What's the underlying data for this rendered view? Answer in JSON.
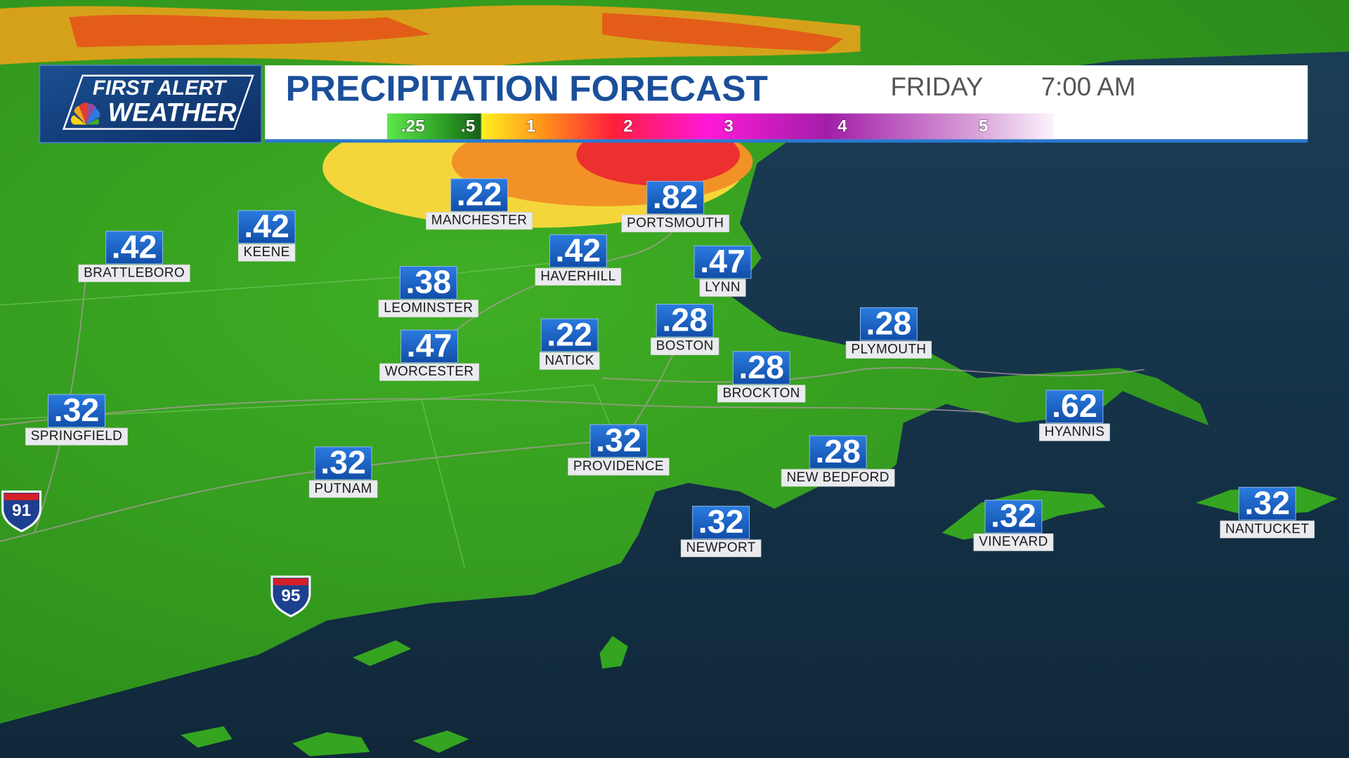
{
  "brand": {
    "line1": "FIRST ALERT",
    "line2": "WEATHER"
  },
  "header": {
    "title": "PRECIPITATION FORECAST",
    "day": "FRIDAY",
    "time": "7:00 AM"
  },
  "legend": {
    "labels": [
      ".25",
      ".5",
      "1",
      "2",
      "3",
      "4",
      "5"
    ]
  },
  "highways": [
    "91",
    "95"
  ],
  "cities": [
    {
      "value": ".22",
      "name": "MANCHESTER"
    },
    {
      "value": ".82",
      "name": "PORTSMOUTH"
    },
    {
      "value": ".42",
      "name": "BRATTLEBORO"
    },
    {
      "value": ".42",
      "name": "KEENE"
    },
    {
      "value": ".38",
      "name": "LEOMINSTER"
    },
    {
      "value": ".42",
      "name": "HAVERHILL"
    },
    {
      "value": ".47",
      "name": "LYNN"
    },
    {
      "value": ".28",
      "name": "BOSTON"
    },
    {
      "value": ".22",
      "name": "NATICK"
    },
    {
      "value": ".47",
      "name": "WORCESTER"
    },
    {
      "value": ".28",
      "name": "PLYMOUTH"
    },
    {
      "value": ".28",
      "name": "BROCKTON"
    },
    {
      "value": ".32",
      "name": "SPRINGFIELD"
    },
    {
      "value": ".62",
      "name": "HYANNIS"
    },
    {
      "value": ".32",
      "name": "PROVIDENCE"
    },
    {
      "value": ".28",
      "name": "NEW BEDFORD"
    },
    {
      "value": ".32",
      "name": "PUTNAM"
    },
    {
      "value": ".32",
      "name": "NEWPORT"
    },
    {
      "value": ".32",
      "name": "VINEYARD"
    },
    {
      "value": ".32",
      "name": "NANTUCKET"
    }
  ]
}
